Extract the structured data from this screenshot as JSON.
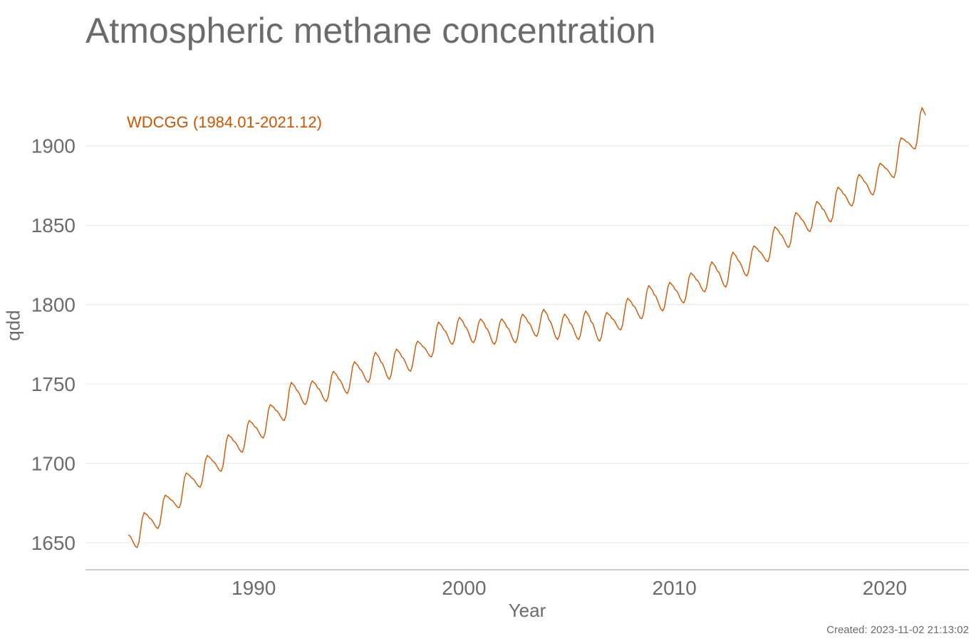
{
  "chart_data": {
    "type": "line",
    "title": "Atmospheric methane concentration",
    "xlabel": "Year",
    "ylabel": "ppb",
    "xlim": [
      1982,
      2024
    ],
    "ylim": [
      1633,
      1938
    ],
    "x_ticks": [
      1990,
      2000,
      2010,
      2020
    ],
    "y_ticks": [
      1650,
      1700,
      1750,
      1800,
      1850,
      1900
    ],
    "grid": "horizontal",
    "legend_placement": "top-left (inline label)",
    "created": "Created: 2023-11-02 21:13:02",
    "series": [
      {
        "name": "WDCGG (1984.01-2021.12)",
        "color": "#cc5500",
        "start": 1984.04,
        "step": 0.0833,
        "annual_peaks": [
          1669,
          1680,
          1694,
          1705,
          1718,
          1727,
          1737,
          1751,
          1752,
          1758,
          1764,
          1770,
          1772,
          1777,
          1789,
          1792,
          1791,
          1791,
          1794,
          1797,
          1794,
          1796,
          1795,
          1804,
          1812,
          1814,
          1820,
          1827,
          1833,
          1837,
          1849,
          1858,
          1865,
          1874,
          1882,
          1889,
          1905,
          1924
        ],
        "annual_troughs": [
          1647,
          1659,
          1672,
          1685,
          1695,
          1707,
          1716,
          1727,
          1737,
          1739,
          1744,
          1751,
          1753,
          1758,
          1767,
          1775,
          1776,
          1775,
          1776,
          1780,
          1778,
          1778,
          1777,
          1784,
          1791,
          1796,
          1801,
          1808,
          1811,
          1818,
          1827,
          1836,
          1846,
          1852,
          1862,
          1869,
          1880,
          1898
        ],
        "start_value": 1655
      }
    ]
  }
}
